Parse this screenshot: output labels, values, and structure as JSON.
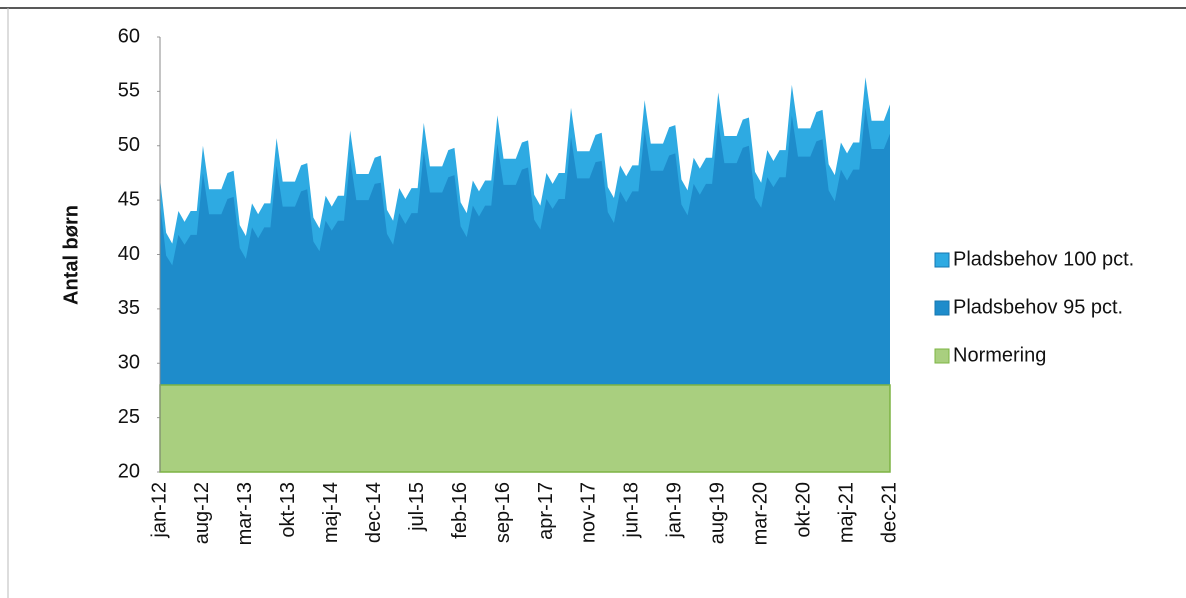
{
  "chart_data": {
    "type": "area",
    "y_label": "Antal børn",
    "legend": "right",
    "grid": false,
    "categories": [
      "jan-12",
      null,
      null,
      null,
      null,
      null,
      null,
      "aug-12",
      null,
      null,
      null,
      null,
      null,
      null,
      "mar-13",
      null,
      null,
      null,
      null,
      null,
      null,
      "okt-13",
      null,
      null,
      null,
      null,
      null,
      null,
      "maj-14",
      null,
      null,
      null,
      null,
      null,
      null,
      "dec-14",
      null,
      null,
      null,
      null,
      null,
      null,
      "jul-15",
      null,
      null,
      null,
      null,
      null,
      null,
      "feb-16",
      null,
      null,
      null,
      null,
      null,
      null,
      "sep-16",
      null,
      null,
      null,
      null,
      null,
      null,
      "apr-17",
      null,
      null,
      null,
      null,
      null,
      null,
      "nov-17",
      null,
      null,
      null,
      null,
      null,
      null,
      "jun-18",
      null,
      null,
      null,
      null,
      null,
      null,
      "jan-19",
      null,
      null,
      null,
      null,
      null,
      null,
      "aug-19",
      null,
      null,
      null,
      null,
      null,
      null,
      "mar-20",
      null,
      null,
      null,
      null,
      null,
      null,
      "okt-20",
      null,
      null,
      null,
      null,
      null,
      null,
      "maj-21",
      null,
      null,
      null,
      null,
      null,
      null,
      "dec-21"
    ],
    "ylim": [
      20,
      60
    ],
    "yticks": [
      20,
      25,
      30,
      35,
      40,
      45,
      50,
      55,
      60
    ],
    "series": [
      {
        "name": "Pladsbehov 100 pct.",
        "color": "#2eaae2",
        "values": [
          47,
          42,
          41,
          44,
          43,
          44,
          44,
          50,
          46,
          46,
          46,
          47.5,
          47.7,
          42.7,
          41.7,
          44.7,
          43.7,
          44.7,
          44.7,
          50.7,
          46.7,
          46.7,
          46.7,
          48.2,
          48.4,
          43.4,
          42.4,
          45.4,
          44.4,
          45.4,
          45.4,
          51.4,
          47.4,
          47.4,
          47.4,
          48.9,
          49.1,
          44.1,
          43.1,
          46.1,
          45.1,
          46.1,
          46.1,
          52.1,
          48.1,
          48.1,
          48.1,
          49.6,
          49.8,
          44.8,
          43.8,
          46.8,
          45.8,
          46.8,
          46.8,
          52.8,
          48.8,
          48.8,
          48.8,
          50.3,
          50.5,
          45.5,
          44.5,
          47.5,
          46.5,
          47.5,
          47.5,
          53.5,
          49.5,
          49.5,
          49.5,
          51,
          51.2,
          46.2,
          45.2,
          48.2,
          47.2,
          48.2,
          48.2,
          54.2,
          50.2,
          50.2,
          50.2,
          51.7,
          51.9,
          46.9,
          45.9,
          48.9,
          47.9,
          48.9,
          48.9,
          54.9,
          50.9,
          50.9,
          50.9,
          52.4,
          52.6,
          47.6,
          46.6,
          49.6,
          48.6,
          49.6,
          49.6,
          55.6,
          51.6,
          51.6,
          51.6,
          53.1,
          53.3,
          48.3,
          47.3,
          50.3,
          49.3,
          50.3,
          50.3,
          56.3,
          52.3,
          52.3,
          52.3,
          53.8
        ]
      },
      {
        "name": "Pladsbehov 95 pct.",
        "color": "#1e8ccb",
        "values": [
          44.7,
          39.9,
          39,
          41.8,
          40.9,
          41.8,
          41.8,
          47.5,
          43.7,
          43.7,
          43.7,
          45.1,
          45.3,
          40.6,
          39.6,
          42.5,
          41.5,
          42.5,
          42.5,
          48.2,
          44.4,
          44.4,
          44.4,
          45.8,
          46,
          41.2,
          40.3,
          43.1,
          42.2,
          43.1,
          43.1,
          48.8,
          45,
          45,
          45,
          46.5,
          46.6,
          41.9,
          40.9,
          43.8,
          42.8,
          43.8,
          43.8,
          49.5,
          45.7,
          45.7,
          45.7,
          47.1,
          47.3,
          42.6,
          41.6,
          44.5,
          43.5,
          44.5,
          44.5,
          50.2,
          46.4,
          46.4,
          46.4,
          47.8,
          48,
          43.2,
          42.3,
          45.1,
          44.2,
          45.1,
          45.1,
          50.8,
          47,
          47,
          47,
          48.5,
          48.6,
          43.9,
          42.9,
          45.8,
          44.8,
          45.8,
          45.8,
          51.5,
          47.7,
          47.7,
          47.7,
          49.1,
          49.3,
          44.6,
          43.6,
          46.5,
          45.5,
          46.5,
          46.5,
          52.2,
          48.4,
          48.4,
          48.4,
          49.8,
          50,
          45.2,
          44.3,
          47.1,
          46.2,
          47.1,
          47.1,
          52.8,
          49,
          49,
          49,
          50.4,
          50.6,
          45.9,
          44.9,
          47.8,
          46.8,
          47.8,
          47.8,
          53.5,
          49.7,
          49.7,
          49.7,
          51.1
        ]
      },
      {
        "name": "Normering",
        "color": "#a9cf7f",
        "values": [
          28,
          28,
          28,
          28,
          28,
          28,
          28,
          28,
          28,
          28,
          28,
          28,
          28,
          28,
          28,
          28,
          28,
          28,
          28,
          28,
          28,
          28,
          28,
          28,
          28,
          28,
          28,
          28,
          28,
          28,
          28,
          28,
          28,
          28,
          28,
          28,
          28,
          28,
          28,
          28,
          28,
          28,
          28,
          28,
          28,
          28,
          28,
          28,
          28,
          28,
          28,
          28,
          28,
          28,
          28,
          28,
          28,
          28,
          28,
          28,
          28,
          28,
          28,
          28,
          28,
          28,
          28,
          28,
          28,
          28,
          28,
          28,
          28,
          28,
          28,
          28,
          28,
          28,
          28,
          28,
          28,
          28,
          28,
          28,
          28,
          28,
          28,
          28,
          28,
          28,
          28,
          28,
          28,
          28,
          28,
          28,
          28,
          28,
          28,
          28,
          28,
          28,
          28,
          28,
          28,
          28,
          28,
          28,
          28,
          28,
          28,
          28,
          28,
          28,
          28,
          28,
          28,
          28,
          28,
          28
        ]
      }
    ]
  }
}
